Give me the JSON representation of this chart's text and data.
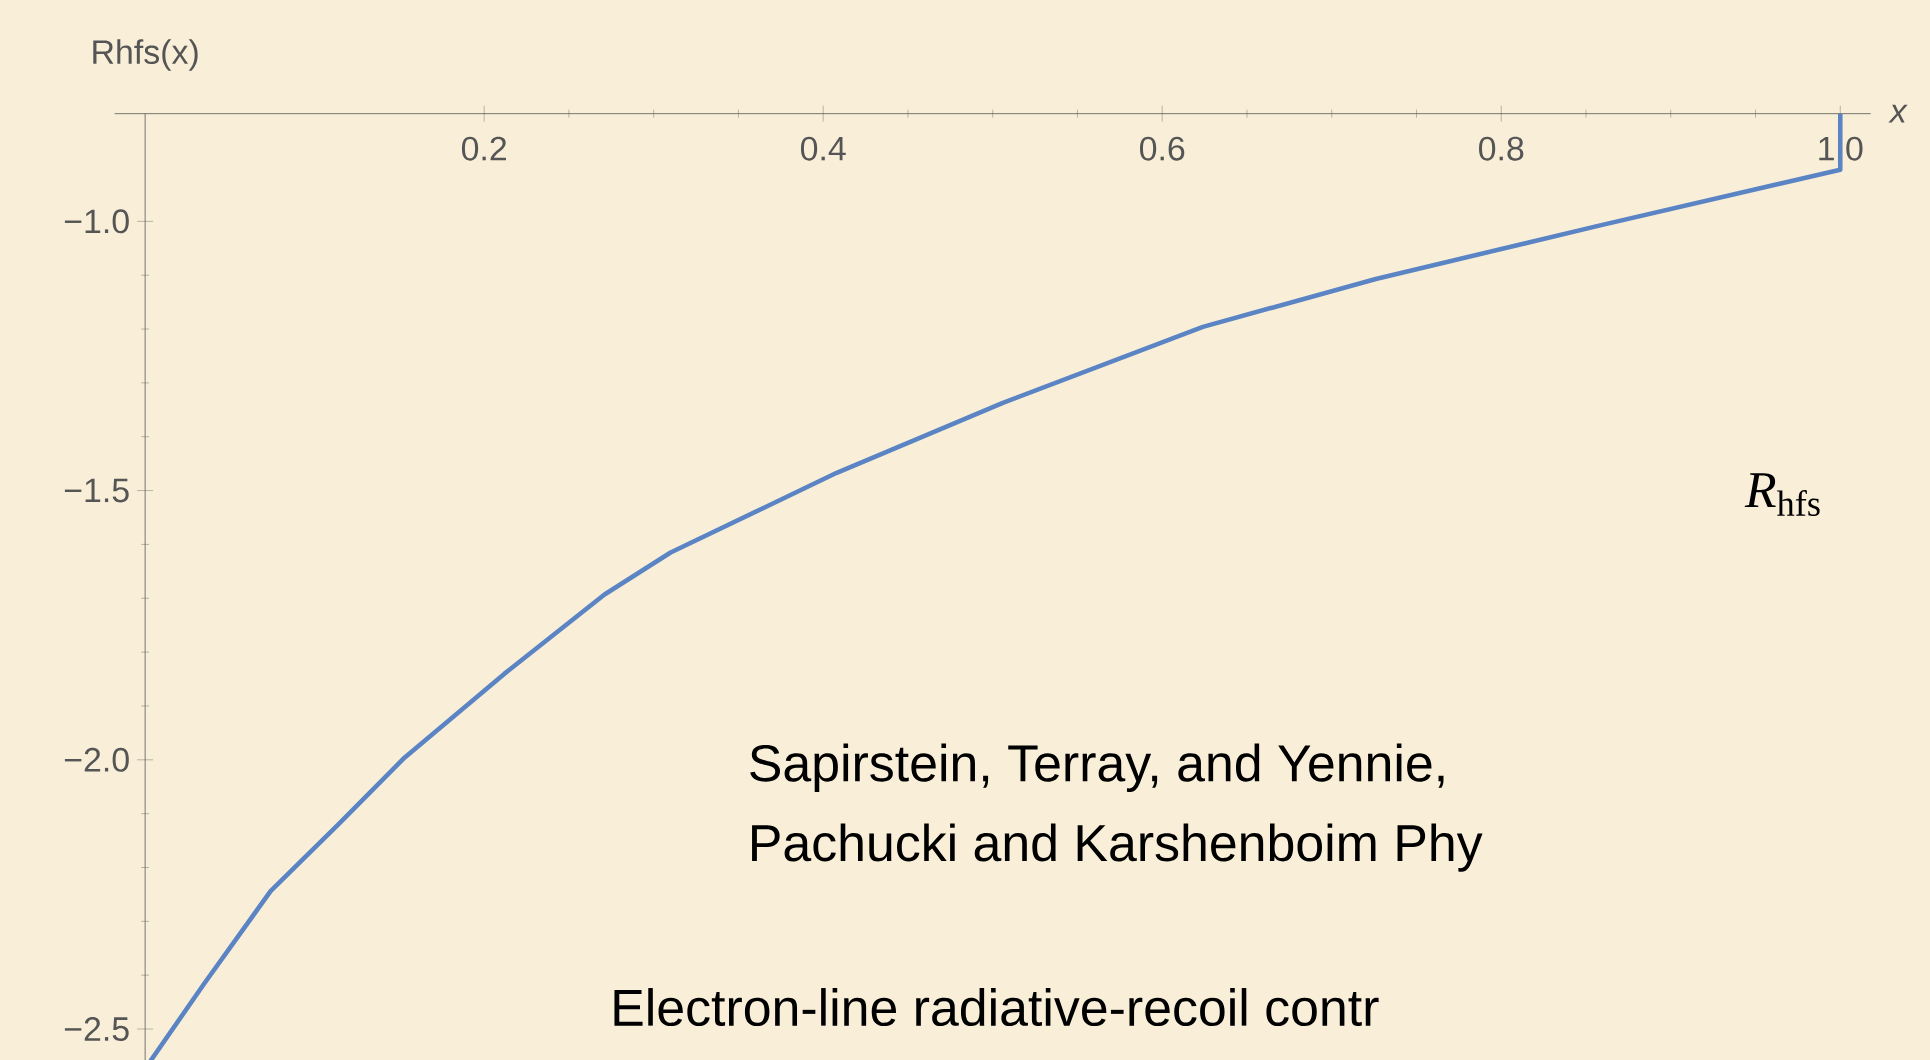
{
  "chart_data": {
    "type": "line",
    "xlabel": "x",
    "ylabel": "Rhfs(x)",
    "x": [
      0.003,
      0.035,
      0.074,
      0.114,
      0.153,
      0.212,
      0.271,
      0.31,
      0.408,
      0.506,
      0.624,
      0.726,
      0.859,
      1.0,
      1.0
    ],
    "values": [
      -2.56,
      -2.415,
      -2.244,
      -2.12,
      -1.996,
      -1.84,
      -1.693,
      -1.615,
      -1.467,
      -1.337,
      -1.196,
      -1.107,
      -1.007,
      -0.904,
      -0.8
    ],
    "color": "#5b84c4",
    "xlim": [
      -0.018,
      1.018
    ],
    "ylim": [
      -2.56,
      -0.8
    ],
    "xticks": [
      0.2,
      0.4,
      0.6,
      0.8,
      {
        "value": 1.0,
        "label": "1.0"
      }
    ],
    "yticks": [
      {
        "value": -2.5,
        "label": "−2.5"
      },
      {
        "value": -2.0,
        "label": "−2.0"
      },
      {
        "value": -1.5,
        "label": "−1.5"
      },
      {
        "value": -1.0,
        "label": "−1.0"
      }
    ],
    "annotations": [
      "*R*$_{hfs}$",
      "Sapirstein, Terray, and Yennie,",
      "Pachucki and Karshenboim Phy",
      "Electron-line radiative-recoil contr"
    ],
    "marker": "none",
    "line_style": "solid"
  }
}
